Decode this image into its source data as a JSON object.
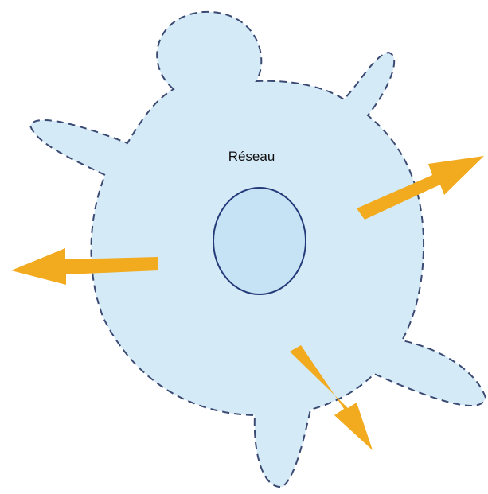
{
  "diagram": {
    "label": "Réseau"
  }
}
